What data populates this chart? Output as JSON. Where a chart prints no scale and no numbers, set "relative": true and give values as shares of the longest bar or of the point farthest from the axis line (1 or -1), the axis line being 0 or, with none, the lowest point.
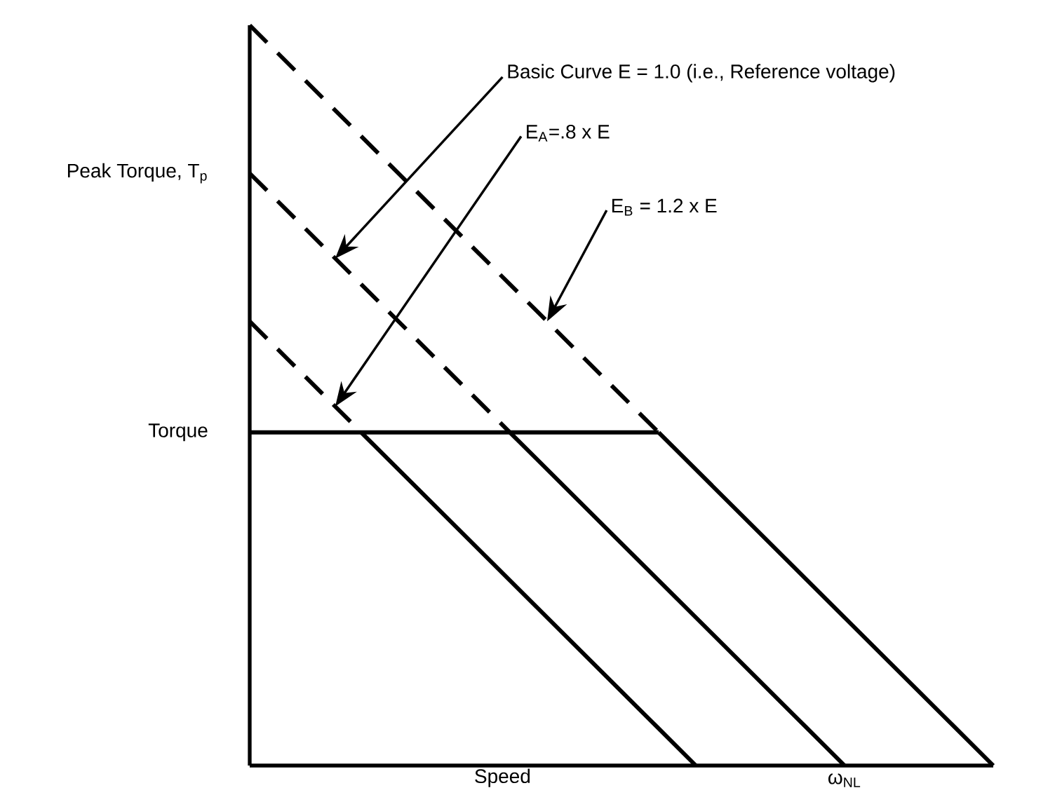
{
  "chart_data": {
    "type": "line",
    "relative": true,
    "xlabel": "Speed",
    "marker": "none",
    "categories": [
      null,
      null,
      null,
      null,
      null,
      null,
      null,
      null,
      null,
      null,
      null,
      null,
      null,
      null,
      null,
      null,
      null,
      null,
      null,
      null,
      null
    ],
    "series": [
      {
        "values": [
          1,
          0.95,
          0.9,
          0.85,
          0.8,
          0.75,
          0.7,
          0.65,
          0.6,
          0.55,
          0.5,
          0.45,
          null,
          null,
          null,
          null,
          null,
          null,
          null,
          null,
          null
        ],
        "color": "#000000",
        "line_style": "dashed"
      },
      {
        "values": [
          null,
          null,
          null,
          null,
          null,
          null,
          null,
          null,
          null,
          null,
          null,
          0.45,
          0.4,
          0.35,
          0.3,
          0.25,
          0.2,
          0.15,
          0.1,
          0.05,
          0
        ],
        "color": "#000000",
        "line_style": "solid"
      },
      {
        "values": [
          0.8,
          0.75,
          0.7,
          0.65,
          0.6,
          0.55,
          0.5,
          0.45,
          null,
          null,
          null,
          null,
          null,
          null,
          null,
          null,
          null,
          null,
          null,
          null,
          null
        ],
        "color": "#000000",
        "line_style": "dashed"
      },
      {
        "values": [
          null,
          null,
          null,
          null,
          null,
          null,
          null,
          0.45,
          0.4,
          0.35,
          0.3,
          0.25,
          0.2,
          0.15,
          0.1,
          0.05,
          0,
          null,
          null,
          null,
          null
        ],
        "color": "#000000",
        "line_style": "solid"
      },
      {
        "values": [
          0.6,
          0.55,
          0.5,
          0.45,
          null,
          null,
          null,
          null,
          null,
          null,
          null,
          null,
          null,
          null,
          null,
          null,
          null,
          null,
          null,
          null,
          null
        ],
        "color": "#000000",
        "line_style": "dashed"
      },
      {
        "values": [
          null,
          null,
          null,
          0.45,
          0.4,
          0.35,
          0.3,
          0.25,
          0.2,
          0.15,
          0.1,
          0.05,
          0,
          null,
          null,
          null,
          null,
          null,
          null,
          null,
          null
        ],
        "color": "#000000",
        "line_style": "solid"
      },
      {
        "values": [
          0.45,
          0.45,
          0.45,
          0.45,
          0.45,
          0.45,
          0.45,
          0.45,
          0.45,
          0.45,
          0.45,
          0.45,
          null,
          null,
          null,
          null,
          null,
          null,
          null,
          null,
          null
        ],
        "color": "#000000",
        "line_style": "solid"
      }
    ],
    "annotations": [
      "Peak Torque, T$_{p}$",
      "Torque",
      "Basic Curve E = 1.0 (i.e., Reference voltage)",
      "E$_{A}$=.8 x E",
      "E$_{B}$ = 1.2 x E",
      "ω$_{NL}$"
    ]
  }
}
